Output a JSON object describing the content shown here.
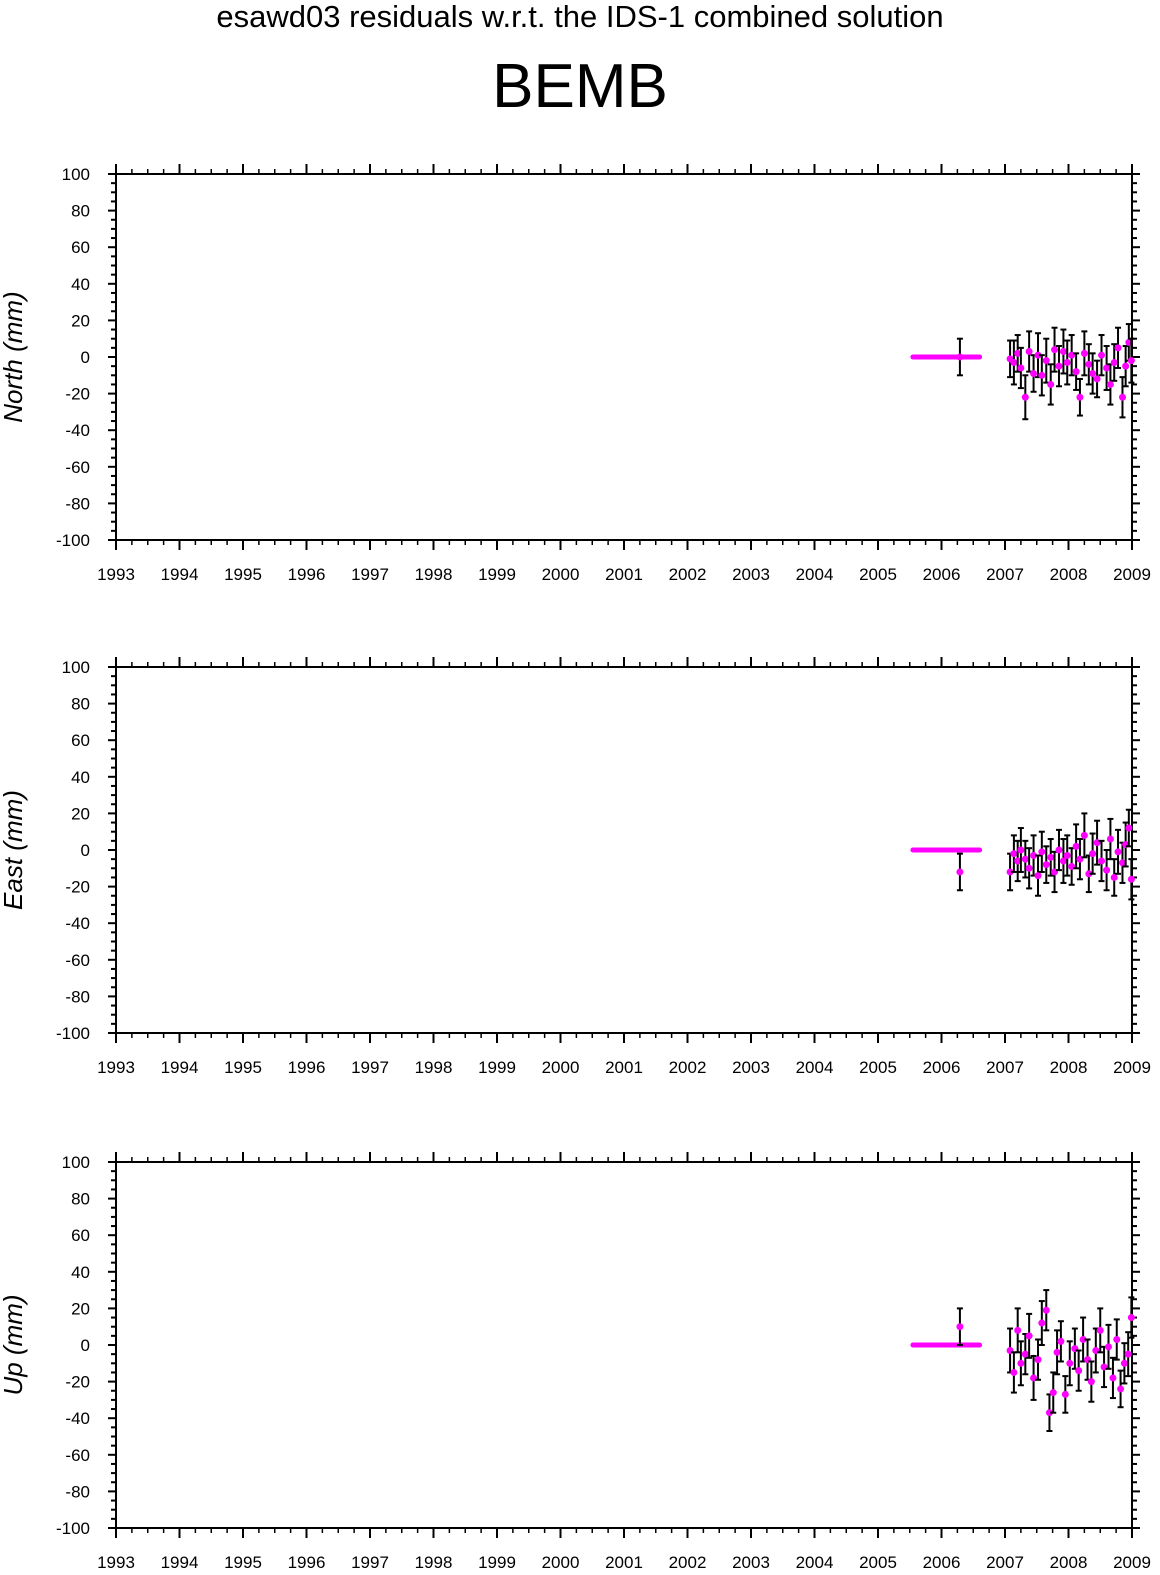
{
  "subtitle": "esawd03 residuals w.r.t. the IDS-1 combined solution",
  "title": "BEMB",
  "colors": {
    "point": "#ff00ff",
    "errorbar": "#000000",
    "axis": "#000000"
  },
  "chart_data": [
    {
      "type": "scatter",
      "ylabel": "North (mm)",
      "xlim": [
        1993,
        2009
      ],
      "ylim": [
        -100,
        100
      ],
      "xticks": [
        "1993",
        "1994",
        "1995",
        "1996",
        "1997",
        "1998",
        "1999",
        "2000",
        "2001",
        "2002",
        "2003",
        "2004",
        "2005",
        "2006",
        "2007",
        "2008",
        "2009"
      ],
      "yticks": [
        "100",
        "80",
        "60",
        "40",
        "20",
        "0",
        "-20",
        "-40",
        "-60",
        "-80",
        "-100"
      ],
      "series": [
        {
          "x_range": [
            2005.55,
            2006.6
          ],
          "y": 0
        },
        {
          "points": [
            {
              "x": 2006.29,
              "y": 0,
              "err": 10
            },
            {
              "x": 2007.08,
              "y": -1,
              "err": 10
            },
            {
              "x": 2007.14,
              "y": -3,
              "err": 12
            },
            {
              "x": 2007.2,
              "y": 2,
              "err": 10
            },
            {
              "x": 2007.25,
              "y": -6,
              "err": 11
            },
            {
              "x": 2007.32,
              "y": -22,
              "err": 12
            },
            {
              "x": 2007.38,
              "y": 3,
              "err": 11
            },
            {
              "x": 2007.45,
              "y": -9,
              "err": 10
            },
            {
              "x": 2007.52,
              "y": 1,
              "err": 12
            },
            {
              "x": 2007.58,
              "y": -10,
              "err": 11
            },
            {
              "x": 2007.65,
              "y": -2,
              "err": 12
            },
            {
              "x": 2007.72,
              "y": -15,
              "err": 11
            },
            {
              "x": 2007.78,
              "y": 4,
              "err": 12
            },
            {
              "x": 2007.85,
              "y": -5,
              "err": 11
            },
            {
              "x": 2007.92,
              "y": 3,
              "err": 12
            },
            {
              "x": 2007.98,
              "y": -3,
              "err": 12
            },
            {
              "x": 2008.05,
              "y": 1,
              "err": 11
            },
            {
              "x": 2008.12,
              "y": -8,
              "err": 10
            },
            {
              "x": 2008.18,
              "y": -22,
              "err": 10
            },
            {
              "x": 2008.25,
              "y": 2,
              "err": 12
            },
            {
              "x": 2008.32,
              "y": -4,
              "err": 11
            },
            {
              "x": 2008.38,
              "y": -9,
              "err": 11
            },
            {
              "x": 2008.45,
              "y": -12,
              "err": 10
            },
            {
              "x": 2008.52,
              "y": 1,
              "err": 11
            },
            {
              "x": 2008.6,
              "y": -6,
              "err": 12
            },
            {
              "x": 2008.66,
              "y": -15,
              "err": 11
            },
            {
              "x": 2008.72,
              "y": -3,
              "err": 10
            },
            {
              "x": 2008.78,
              "y": 5,
              "err": 11
            },
            {
              "x": 2008.85,
              "y": -22,
              "err": 11
            },
            {
              "x": 2008.9,
              "y": -5,
              "err": 11
            },
            {
              "x": 2008.95,
              "y": 8,
              "err": 10
            },
            {
              "x": 2008.99,
              "y": -2,
              "err": 12
            }
          ]
        }
      ]
    },
    {
      "type": "scatter",
      "ylabel": "East (mm)",
      "xlim": [
        1993,
        2009
      ],
      "ylim": [
        -100,
        100
      ],
      "xticks": [
        "1993",
        "1994",
        "1995",
        "1996",
        "1997",
        "1998",
        "1999",
        "2000",
        "2001",
        "2002",
        "2003",
        "2004",
        "2005",
        "2006",
        "2007",
        "2008",
        "2009"
      ],
      "yticks": [
        "100",
        "80",
        "60",
        "40",
        "20",
        "0",
        "-20",
        "-40",
        "-60",
        "-80",
        "-100"
      ],
      "series": [
        {
          "x_range": [
            2005.55,
            2006.6
          ],
          "y": 0
        },
        {
          "points": [
            {
              "x": 2006.29,
              "y": -12,
              "err": 10
            },
            {
              "x": 2007.08,
              "y": -12,
              "err": 10
            },
            {
              "x": 2007.14,
              "y": -2,
              "err": 10
            },
            {
              "x": 2007.2,
              "y": -6,
              "err": 11
            },
            {
              "x": 2007.25,
              "y": 0,
              "err": 12
            },
            {
              "x": 2007.32,
              "y": -5,
              "err": 10
            },
            {
              "x": 2007.38,
              "y": -10,
              "err": 11
            },
            {
              "x": 2007.45,
              "y": -3,
              "err": 11
            },
            {
              "x": 2007.52,
              "y": -14,
              "err": 11
            },
            {
              "x": 2007.58,
              "y": -1,
              "err": 11
            },
            {
              "x": 2007.65,
              "y": -8,
              "err": 10
            },
            {
              "x": 2007.72,
              "y": -4,
              "err": 10
            },
            {
              "x": 2007.78,
              "y": -12,
              "err": 11
            },
            {
              "x": 2007.85,
              "y": 0,
              "err": 11
            },
            {
              "x": 2007.92,
              "y": -6,
              "err": 12
            },
            {
              "x": 2007.98,
              "y": -3,
              "err": 11
            },
            {
              "x": 2008.05,
              "y": -9,
              "err": 10
            },
            {
              "x": 2008.12,
              "y": 2,
              "err": 12
            },
            {
              "x": 2008.18,
              "y": -5,
              "err": 11
            },
            {
              "x": 2008.25,
              "y": 8,
              "err": 12
            },
            {
              "x": 2008.32,
              "y": -13,
              "err": 10
            },
            {
              "x": 2008.38,
              "y": -2,
              "err": 11
            },
            {
              "x": 2008.45,
              "y": 4,
              "err": 12
            },
            {
              "x": 2008.52,
              "y": -6,
              "err": 11
            },
            {
              "x": 2008.6,
              "y": -11,
              "err": 11
            },
            {
              "x": 2008.66,
              "y": 6,
              "err": 11
            },
            {
              "x": 2008.72,
              "y": -15,
              "err": 10
            },
            {
              "x": 2008.78,
              "y": -1,
              "err": 12
            },
            {
              "x": 2008.85,
              "y": -7,
              "err": 11
            },
            {
              "x": 2008.9,
              "y": 3,
              "err": 12
            },
            {
              "x": 2008.95,
              "y": 12,
              "err": 10
            },
            {
              "x": 2008.99,
              "y": -16,
              "err": 11
            }
          ]
        }
      ]
    },
    {
      "type": "scatter",
      "ylabel": "Up (mm)",
      "xlim": [
        1993,
        2009
      ],
      "ylim": [
        -100,
        100
      ],
      "xticks": [
        "1993",
        "1994",
        "1995",
        "1996",
        "1997",
        "1998",
        "1999",
        "2000",
        "2001",
        "2002",
        "2003",
        "2004",
        "2005",
        "2006",
        "2007",
        "2008",
        "2009"
      ],
      "yticks": [
        "100",
        "80",
        "60",
        "40",
        "20",
        "0",
        "-20",
        "-40",
        "-60",
        "-80",
        "-100"
      ],
      "series": [
        {
          "x_range": [
            2005.55,
            2006.6
          ],
          "y": 0
        },
        {
          "points": [
            {
              "x": 2006.29,
              "y": 10,
              "err": 10
            },
            {
              "x": 2007.08,
              "y": -3,
              "err": 12
            },
            {
              "x": 2007.14,
              "y": -15,
              "err": 11
            },
            {
              "x": 2007.2,
              "y": 8,
              "err": 12
            },
            {
              "x": 2007.25,
              "y": -10,
              "err": 12
            },
            {
              "x": 2007.32,
              "y": -5,
              "err": 11
            },
            {
              "x": 2007.38,
              "y": 5,
              "err": 12
            },
            {
              "x": 2007.45,
              "y": -18,
              "err": 12
            },
            {
              "x": 2007.52,
              "y": -8,
              "err": 11
            },
            {
              "x": 2007.58,
              "y": 12,
              "err": 12
            },
            {
              "x": 2007.65,
              "y": 19,
              "err": 11
            },
            {
              "x": 2007.7,
              "y": -37,
              "err": 10
            },
            {
              "x": 2007.76,
              "y": -26,
              "err": 11
            },
            {
              "x": 2007.82,
              "y": -4,
              "err": 12
            },
            {
              "x": 2007.88,
              "y": 2,
              "err": 11
            },
            {
              "x": 2007.95,
              "y": -27,
              "err": 10
            },
            {
              "x": 2008.02,
              "y": -10,
              "err": 12
            },
            {
              "x": 2008.1,
              "y": -2,
              "err": 11
            },
            {
              "x": 2008.16,
              "y": -14,
              "err": 11
            },
            {
              "x": 2008.23,
              "y": 3,
              "err": 12
            },
            {
              "x": 2008.3,
              "y": -8,
              "err": 11
            },
            {
              "x": 2008.36,
              "y": -20,
              "err": 11
            },
            {
              "x": 2008.43,
              "y": -3,
              "err": 12
            },
            {
              "x": 2008.5,
              "y": 8,
              "err": 12
            },
            {
              "x": 2008.56,
              "y": -12,
              "err": 11
            },
            {
              "x": 2008.63,
              "y": -1,
              "err": 12
            },
            {
              "x": 2008.7,
              "y": -18,
              "err": 11
            },
            {
              "x": 2008.76,
              "y": 3,
              "err": 11
            },
            {
              "x": 2008.82,
              "y": -24,
              "err": 10
            },
            {
              "x": 2008.88,
              "y": -10,
              "err": 11
            },
            {
              "x": 2008.94,
              "y": -5,
              "err": 12
            },
            {
              "x": 2008.99,
              "y": 15,
              "err": 11
            }
          ]
        }
      ]
    }
  ]
}
